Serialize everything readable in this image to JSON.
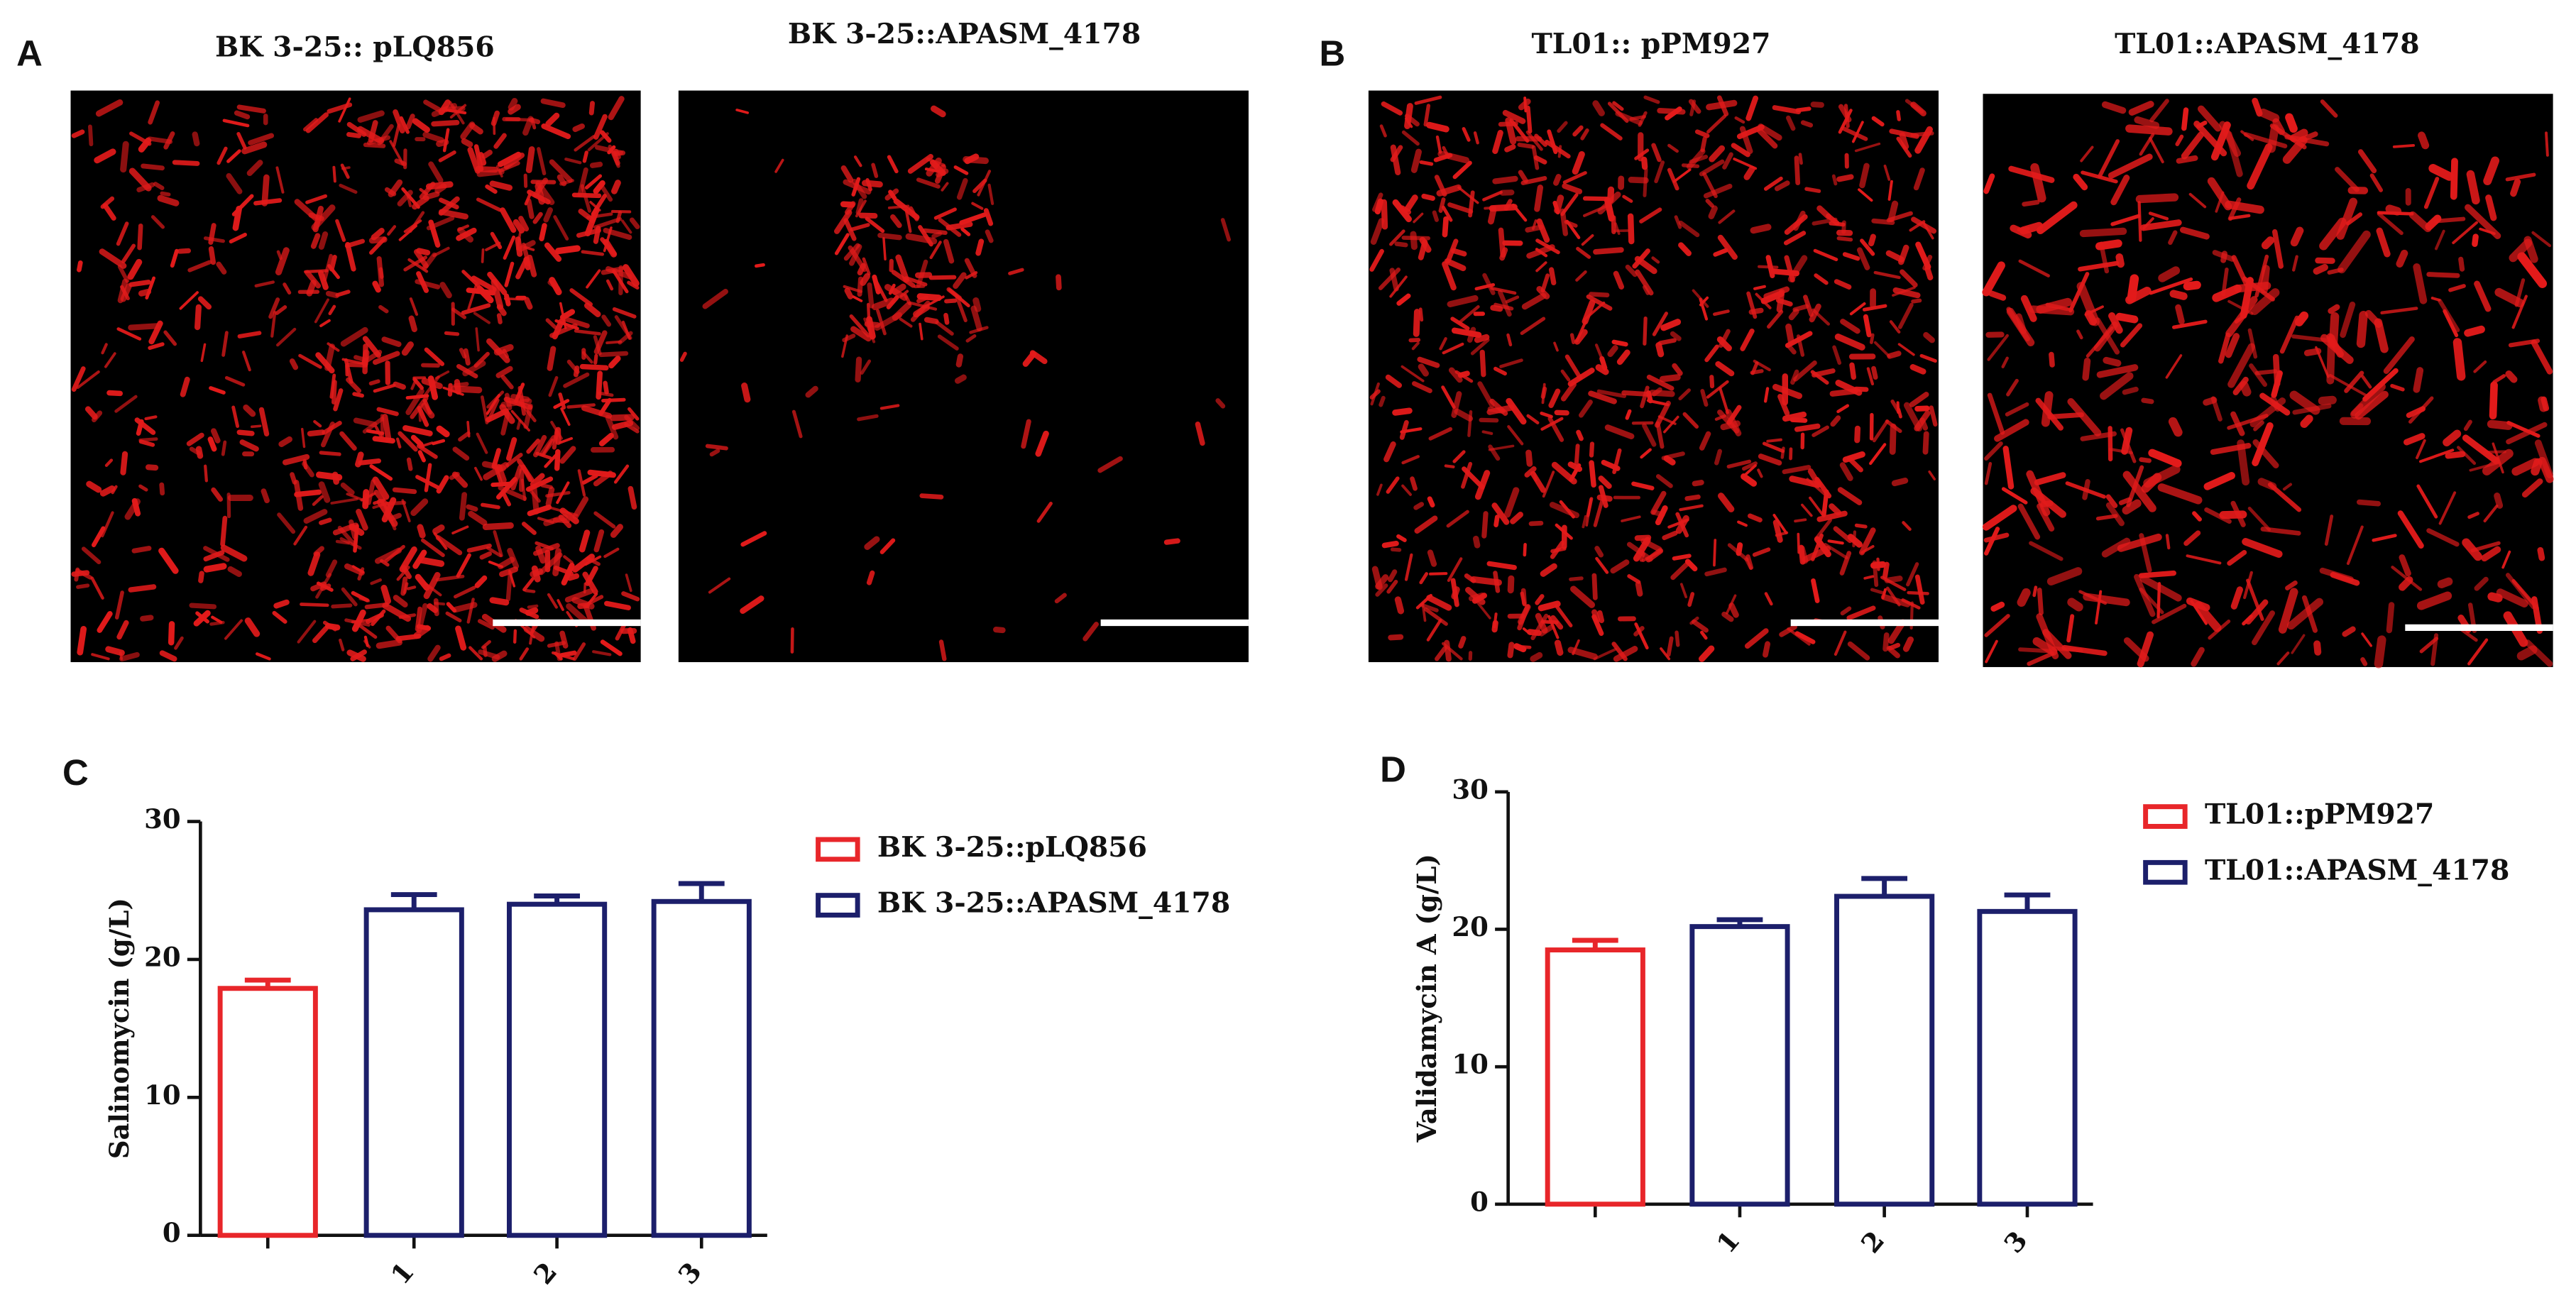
{
  "figure": {
    "labels": [
      "A",
      "B",
      "C",
      "D"
    ],
    "images": [
      {
        "title": "BK 3-25:: pLQ856"
      },
      {
        "title": "BK 3-25::APASM_4178"
      },
      {
        "title": "TL01:: pPM927"
      },
      {
        "title": "TL01::APASM_4178"
      }
    ]
  },
  "chart_data": [
    {
      "type": "bar",
      "y_label": "Salinomycin (g/L)",
      "categories": [
        null,
        "1",
        "2",
        "3"
      ],
      "series": [
        {
          "name": "BK 3-25::pLQ856",
          "color": "#e8262a",
          "values": [
            17.9,
            null,
            null,
            null
          ],
          "errors": [
            0.6,
            null,
            null,
            null
          ]
        },
        {
          "name": "BK 3-25::APASM_4178",
          "color": "#1c1f6b",
          "values": [
            null,
            23.6,
            24.0,
            24.2
          ],
          "errors": [
            null,
            1.1,
            0.6,
            1.3
          ]
        }
      ],
      "ylim": [
        0,
        30
      ],
      "yticks": [
        0,
        10,
        20,
        30
      ]
    },
    {
      "type": "bar",
      "y_label": "Validamycin A (g/L)",
      "categories": [
        null,
        "1",
        "2",
        "3"
      ],
      "series": [
        {
          "name": "TL01::pPM927",
          "color": "#e8262a",
          "values": [
            18.5,
            null,
            null,
            null
          ],
          "errors": [
            0.7,
            null,
            null,
            null
          ]
        },
        {
          "name": "TL01::APASM_4178",
          "color": "#1c1f6b",
          "values": [
            null,
            20.2,
            22.4,
            21.3
          ],
          "errors": [
            null,
            0.5,
            1.3,
            1.2
          ]
        }
      ],
      "ylim": [
        0,
        30
      ],
      "yticks": [
        0,
        10,
        20,
        30
      ]
    }
  ]
}
